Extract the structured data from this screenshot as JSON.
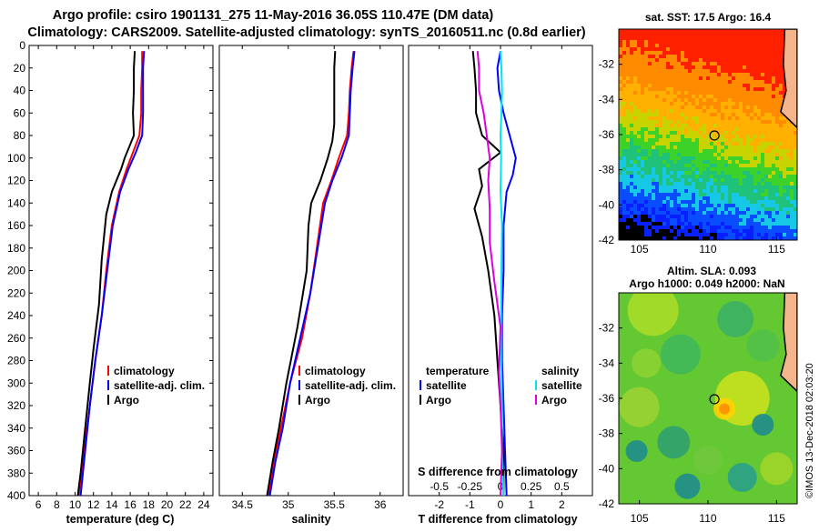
{
  "title": {
    "line1": "Argo profile: csiro 1901131_275 11-May-2016 36.05S 110.47E (DM data)",
    "line2": "Climatology: CARS2009. Satellite-adjusted climatology: synTS_20160511.nc (0.8d earlier)"
  },
  "colors": {
    "climatology": "#ff0000",
    "satellite": "#0000ff",
    "argo": "#000000",
    "sat_s": "#00e5ee",
    "argo_s": "#dd00dd"
  },
  "chart_data": [
    {
      "type": "line",
      "name": "temperature",
      "xlabel": "temperature (deg C)",
      "ylabel": "",
      "xlim": [
        5,
        25
      ],
      "ylim": [
        400,
        0
      ],
      "x_ticks": [
        6,
        8,
        10,
        12,
        14,
        16,
        18,
        20,
        22,
        24
      ],
      "y_ticks": [
        0,
        20,
        40,
        60,
        80,
        100,
        120,
        140,
        160,
        180,
        200,
        220,
        240,
        260,
        280,
        300,
        320,
        340,
        360,
        380,
        400
      ],
      "legend": [
        "climatology",
        "satellite-adj. clim.",
        "Argo"
      ],
      "series": [
        {
          "name": "climatology",
          "color": "#ff0000",
          "points": [
            [
              17.3,
              5
            ],
            [
              17.3,
              20
            ],
            [
              17.2,
              40
            ],
            [
              17.2,
              60
            ],
            [
              17.0,
              80
            ],
            [
              16.3,
              95
            ],
            [
              15.6,
              110
            ],
            [
              14.8,
              130
            ],
            [
              14.0,
              160
            ],
            [
              13.4,
              200
            ],
            [
              12.9,
              240
            ],
            [
              12.2,
              280
            ],
            [
              11.6,
              320
            ],
            [
              11.0,
              360
            ],
            [
              10.4,
              400
            ]
          ]
        },
        {
          "name": "satellite-adj. clim.",
          "color": "#0000ff",
          "points": [
            [
              17.5,
              5
            ],
            [
              17.4,
              20
            ],
            [
              17.4,
              40
            ],
            [
              17.4,
              60
            ],
            [
              17.3,
              80
            ],
            [
              16.6,
              95
            ],
            [
              15.8,
              110
            ],
            [
              14.9,
              130
            ],
            [
              14.1,
              160
            ],
            [
              13.5,
              200
            ],
            [
              12.9,
              240
            ],
            [
              12.2,
              280
            ],
            [
              11.6,
              320
            ],
            [
              11.1,
              360
            ],
            [
              10.6,
              400
            ]
          ]
        },
        {
          "name": "Argo",
          "color": "#000000",
          "points": [
            [
              16.5,
              5
            ],
            [
              16.4,
              20
            ],
            [
              16.4,
              40
            ],
            [
              16.3,
              60
            ],
            [
              16.4,
              80
            ],
            [
              15.4,
              100
            ],
            [
              15.0,
              110
            ],
            [
              14.0,
              130
            ],
            [
              13.4,
              150
            ],
            [
              12.9,
              190
            ],
            [
              12.6,
              230
            ],
            [
              12.0,
              270
            ],
            [
              11.6,
              300
            ],
            [
              11.1,
              340
            ],
            [
              10.6,
              380
            ],
            [
              10.3,
              400
            ]
          ]
        }
      ]
    },
    {
      "type": "line",
      "name": "salinity",
      "xlabel": "salinity",
      "xlim": [
        34.25,
        36.25
      ],
      "ylim": [
        400,
        0
      ],
      "x_ticks": [
        34.5,
        35,
        35.5,
        36
      ],
      "legend": [
        "climatology",
        "satellite-adj. clim.",
        "Argo"
      ],
      "series": [
        {
          "name": "climatology",
          "color": "#ff0000",
          "points": [
            [
              35.71,
              5
            ],
            [
              35.69,
              20
            ],
            [
              35.67,
              40
            ],
            [
              35.66,
              60
            ],
            [
              35.64,
              80
            ],
            [
              35.55,
              100
            ],
            [
              35.47,
              120
            ],
            [
              35.38,
              140
            ],
            [
              35.31,
              180
            ],
            [
              35.24,
              220
            ],
            [
              35.15,
              260
            ],
            [
              35.02,
              300
            ],
            [
              34.92,
              340
            ],
            [
              34.84,
              370
            ],
            [
              34.79,
              400
            ]
          ]
        },
        {
          "name": "satellite-adj. clim.",
          "color": "#0000ff",
          "points": [
            [
              35.72,
              5
            ],
            [
              35.7,
              20
            ],
            [
              35.68,
              40
            ],
            [
              35.67,
              60
            ],
            [
              35.66,
              80
            ],
            [
              35.58,
              100
            ],
            [
              35.48,
              120
            ],
            [
              35.4,
              140
            ],
            [
              35.32,
              180
            ],
            [
              35.24,
              220
            ],
            [
              35.13,
              260
            ],
            [
              35.02,
              300
            ],
            [
              34.94,
              340
            ],
            [
              34.86,
              370
            ],
            [
              34.8,
              400
            ]
          ]
        },
        {
          "name": "Argo",
          "color": "#000000",
          "points": [
            [
              35.51,
              5
            ],
            [
              35.5,
              20
            ],
            [
              35.5,
              40
            ],
            [
              35.5,
              70
            ],
            [
              35.48,
              85
            ],
            [
              35.43,
              100
            ],
            [
              35.35,
              120
            ],
            [
              35.25,
              140
            ],
            [
              35.22,
              160
            ],
            [
              35.2,
              200
            ],
            [
              35.1,
              250
            ],
            [
              34.98,
              300
            ],
            [
              34.9,
              340
            ],
            [
              34.83,
              370
            ],
            [
              34.77,
              400
            ]
          ]
        }
      ]
    },
    {
      "type": "line",
      "name": "difference",
      "xlabel": "T difference from climatology",
      "xlabel_top": "S difference from climatology",
      "xlim": [
        -3,
        3
      ],
      "ylim": [
        400,
        0
      ],
      "x_ticks": [
        -2,
        -1,
        0,
        1,
        2
      ],
      "s_ticks": [
        -0.5,
        -0.25,
        0,
        0.25,
        0.5
      ],
      "legend_t": {
        "title": "temperature",
        "items": [
          "satellite",
          "Argo"
        ]
      },
      "legend_s": {
        "title": "salinity",
        "items": [
          "satellite",
          "Argo"
        ]
      },
      "series": [
        {
          "name": "T satellite",
          "color": "#0000ff",
          "points": [
            [
              0.0,
              5
            ],
            [
              -0.1,
              20
            ],
            [
              -0.05,
              40
            ],
            [
              0.1,
              60
            ],
            [
              0.3,
              80
            ],
            [
              0.5,
              100
            ],
            [
              0.4,
              115
            ],
            [
              0.2,
              130
            ],
            [
              0.1,
              160
            ],
            [
              0.1,
              200
            ],
            [
              0.05,
              240
            ],
            [
              0.05,
              280
            ],
            [
              0.1,
              320
            ],
            [
              0.15,
              360
            ],
            [
              0.2,
              400
            ]
          ]
        },
        {
          "name": "T Argo",
          "color": "#000000",
          "points": [
            [
              -0.9,
              5
            ],
            [
              -0.85,
              20
            ],
            [
              -0.8,
              40
            ],
            [
              -0.8,
              60
            ],
            [
              -0.6,
              80
            ],
            [
              0.0,
              95
            ],
            [
              -0.7,
              110
            ],
            [
              -0.6,
              125
            ],
            [
              -0.85,
              145
            ],
            [
              -0.6,
              170
            ],
            [
              -0.4,
              200
            ],
            [
              -0.2,
              240
            ],
            [
              -0.1,
              280
            ],
            [
              0.0,
              320
            ],
            [
              0.1,
              360
            ],
            [
              0.1,
              400
            ]
          ]
        },
        {
          "name": "S satellite",
          "color": "#00e5ee",
          "points": [
            [
              0.0,
              5
            ],
            [
              0.03,
              20
            ],
            [
              0.05,
              40
            ],
            [
              0.03,
              60
            ],
            [
              0.0,
              80
            ],
            [
              0.02,
              100
            ],
            [
              0.0,
              130
            ],
            [
              0.05,
              160
            ],
            [
              0.03,
              200
            ],
            [
              0.02,
              240
            ],
            [
              0.02,
              280
            ],
            [
              0.05,
              320
            ],
            [
              0.05,
              360
            ],
            [
              0.1,
              400
            ]
          ]
        },
        {
          "name": "S Argo",
          "color": "#dd00dd",
          "points": [
            [
              -0.75,
              5
            ],
            [
              -0.7,
              20
            ],
            [
              -0.7,
              40
            ],
            [
              -0.55,
              60
            ],
            [
              -0.45,
              80
            ],
            [
              -0.35,
              100
            ],
            [
              -0.4,
              120
            ],
            [
              -0.35,
              145
            ],
            [
              -0.35,
              175
            ],
            [
              -0.2,
              210
            ],
            [
              0.0,
              250
            ],
            [
              -0.05,
              290
            ],
            [
              0.0,
              320
            ],
            [
              0.05,
              360
            ],
            [
              0.0,
              400
            ]
          ]
        }
      ]
    },
    {
      "type": "heatmap",
      "name": "sst_map",
      "title": "sat. SST: 17.5 Argo: 16.4",
      "xlim": [
        103.5,
        116.5
      ],
      "ylim": [
        -42,
        -30
      ],
      "x_ticks": [
        105,
        110,
        115
      ],
      "y_ticks": [
        -32,
        -34,
        -36,
        -38,
        -40,
        -42
      ],
      "marker": [
        110.47,
        -36.05
      ]
    },
    {
      "type": "heatmap",
      "name": "sla_map",
      "title": "Altim. SLA: 0.093",
      "subtitle": "Argo h1000: 0.049 h2000: NaN",
      "xlim": [
        103.5,
        116.5
      ],
      "ylim": [
        -42,
        -30
      ],
      "x_ticks": [
        105,
        110,
        115
      ],
      "y_ticks": [
        -32,
        -34,
        -36,
        -38,
        -40,
        -42
      ],
      "marker": [
        110.47,
        -36.05
      ]
    }
  ],
  "credit": "©IMOS 13-Dec-2018 02:03:20"
}
